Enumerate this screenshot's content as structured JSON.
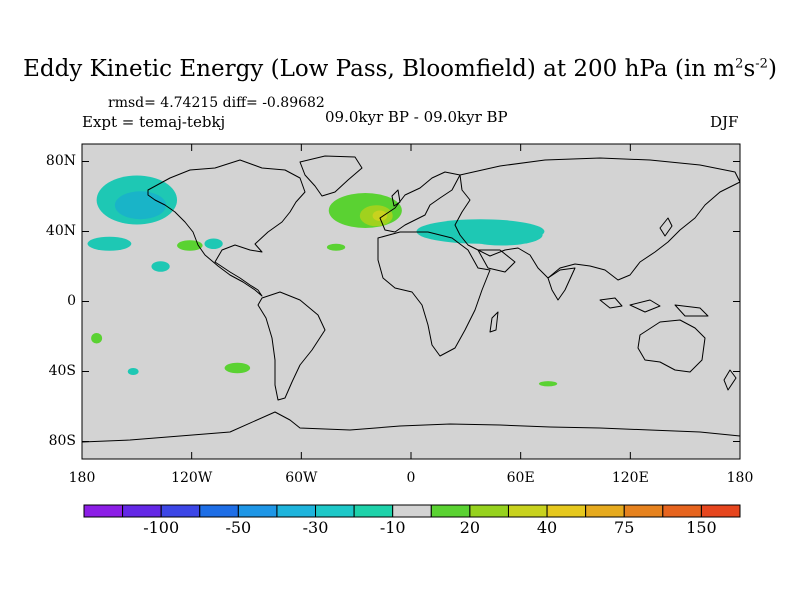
{
  "title": {
    "main": "Eddy Kinetic Energy (Low Pass, Bloomfield) at 200 hPa (in m",
    "sup1": "2",
    "mid": "s",
    "sup2": "-2",
    "end": ")"
  },
  "stats": "rmsd= 4.74215 diff= -0.89682",
  "expt": "Expt = temaj-tebkj",
  "period": "09.0kyr BP - 09.0kyr BP",
  "season": "DJF",
  "map": {
    "lat_labels": [
      "80N",
      "40N",
      "0",
      "40S",
      "80S"
    ],
    "lat_values": [
      80,
      40,
      0,
      -40,
      -80
    ],
    "lon_labels": [
      "180",
      "120W",
      "60W",
      "0",
      "60E",
      "120E",
      "180"
    ],
    "lon_values": [
      -180,
      -120,
      -60,
      0,
      60,
      120,
      180
    ],
    "background_color": "#d3d3d3",
    "anomalies": [
      {
        "lon": -150,
        "lat": 58,
        "rlon": 22,
        "rlat": 14,
        "color": "#1ec8b4"
      },
      {
        "lon": -148,
        "lat": 55,
        "rlon": 14,
        "rlat": 8,
        "color": "#19b4c8"
      },
      {
        "lon": -165,
        "lat": 33,
        "rlon": 12,
        "rlat": 4,
        "color": "#1ec8b4"
      },
      {
        "lon": -137,
        "lat": 20,
        "rlon": 5,
        "rlat": 3,
        "color": "#1ec8b4"
      },
      {
        "lon": -121,
        "lat": 32,
        "rlon": 7,
        "rlat": 3,
        "color": "#5ad232"
      },
      {
        "lon": -108,
        "lat": 33,
        "rlon": 5,
        "rlat": 3,
        "color": "#1ec8b4"
      },
      {
        "lon": -25,
        "lat": 52,
        "rlon": 20,
        "rlat": 10,
        "color": "#5ad232"
      },
      {
        "lon": -19,
        "lat": 49,
        "rlon": 9,
        "rlat": 6,
        "color": "#a0d21e"
      },
      {
        "lon": -17,
        "lat": 49,
        "rlon": 4,
        "rlat": 3,
        "color": "#c8d21e"
      },
      {
        "lon": 38,
        "lat": 40,
        "rlon": 35,
        "rlat": 7,
        "color": "#1ec8b4"
      },
      {
        "lon": 50,
        "lat": 38,
        "rlon": 22,
        "rlat": 6,
        "color": "#1ec8b4"
      },
      {
        "lon": -41,
        "lat": 31,
        "rlon": 5,
        "rlat": 2,
        "color": "#5ad232"
      },
      {
        "lon": -172,
        "lat": -21,
        "rlon": 3,
        "rlat": 3,
        "color": "#5ad232"
      },
      {
        "lon": -152,
        "lat": -40,
        "rlon": 3,
        "rlat": 2,
        "color": "#1ec8b4"
      },
      {
        "lon": -95,
        "lat": -38,
        "rlon": 7,
        "rlat": 3,
        "color": "#5ad232"
      },
      {
        "lon": 75,
        "lat": -47,
        "rlon": 5,
        "rlat": 1.5,
        "color": "#5ad232"
      }
    ]
  },
  "colorbar": {
    "colors": [
      "#8c1ee6",
      "#6428e6",
      "#3c46e6",
      "#1e6ee6",
      "#1e96e6",
      "#1eb4dc",
      "#1ec8c8",
      "#1ed2aa",
      "#d3d3d3",
      "#5ad232",
      "#96d21e",
      "#c8d21e",
      "#e6c81e",
      "#e6aa1e",
      "#e6821e",
      "#e6641e",
      "#e6461e"
    ],
    "labels": [
      "-100",
      "-50",
      "-30",
      "-10",
      "20",
      "40",
      "75",
      "150"
    ],
    "label_after_box": [
      1,
      3,
      5,
      7,
      9,
      11,
      13,
      15
    ]
  }
}
